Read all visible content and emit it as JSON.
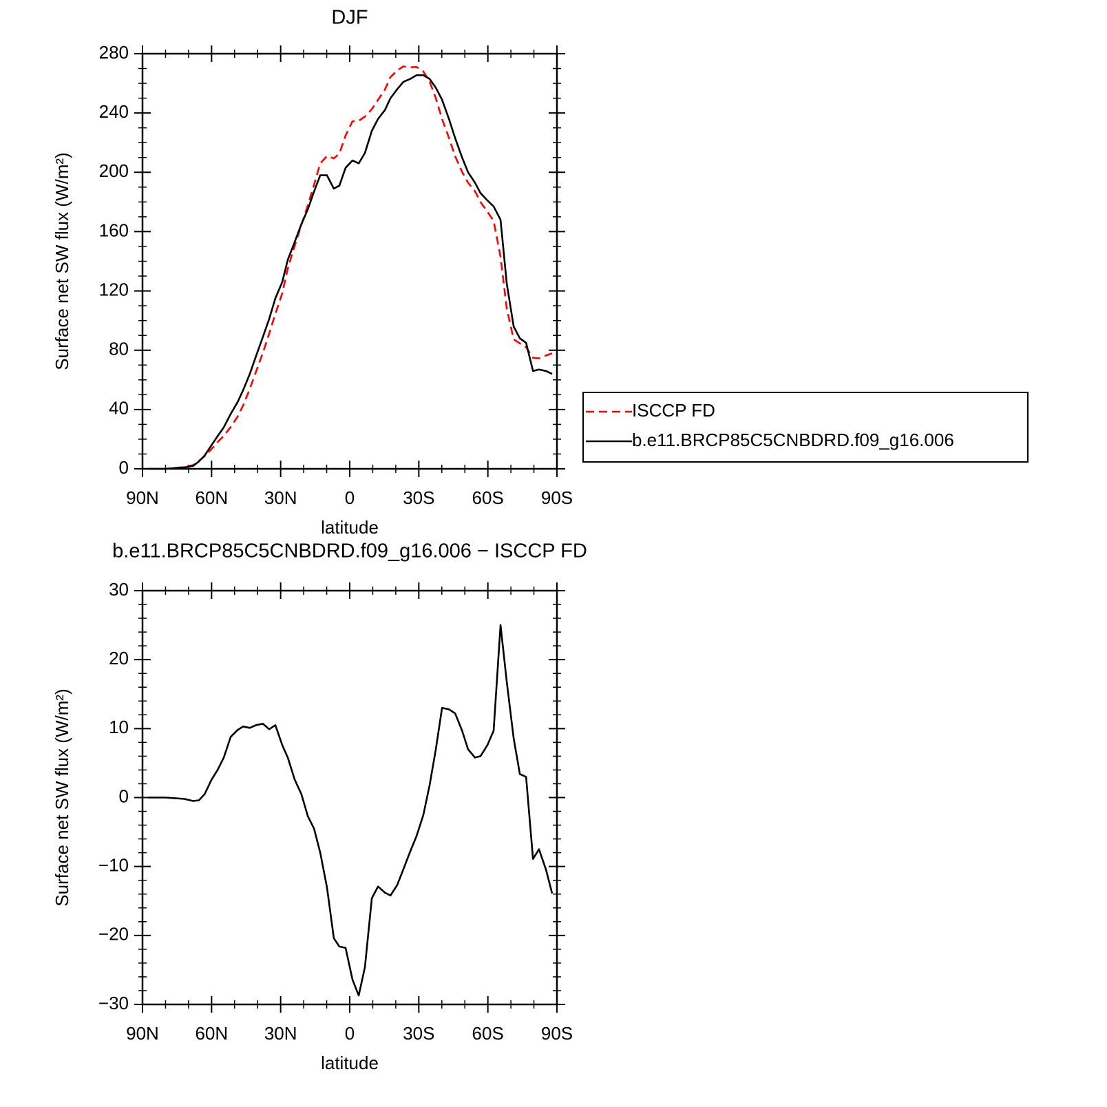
{
  "chart_data": [
    {
      "type": "line",
      "title": "DJF",
      "x_label": "latitude",
      "y_label": "Surface net SW flux (W/m²)",
      "x": [
        87.6,
        80,
        71.8,
        68,
        65.5,
        63,
        60,
        57.4,
        54.7,
        51.7,
        48.7,
        46.3,
        43.4,
        40.7,
        37.7,
        35,
        32.3,
        29.3,
        26.9,
        23.9,
        21,
        18.2,
        15.5,
        12.8,
        9.9,
        6.9,
        4.5,
        1.8,
        -1.2,
        -3.9,
        -6.6,
        -9.6,
        -12.3,
        -15.3,
        -17.7,
        -20.6,
        -23.3,
        -26.3,
        -29,
        -32,
        -34.7,
        -37.4,
        -40.1,
        -43.1,
        -45.8,
        -48.8,
        -51.4,
        -54.4,
        -56.8,
        -59.8,
        -62.5,
        -65.5,
        -68.2,
        -71.2,
        -73.9,
        -76.6,
        -79.6,
        -82.2,
        -85.2,
        -87.9
      ],
      "xlim": [
        90,
        -90
      ],
      "xticks": [
        {
          "value": 90,
          "label": "90N"
        },
        {
          "value": 60,
          "label": "60N"
        },
        {
          "value": 30,
          "label": "30N"
        },
        0,
        {
          "value": -30,
          "label": "30S"
        },
        {
          "value": -60,
          "label": "60S"
        },
        {
          "value": -90,
          "label": "90S"
        }
      ],
      "ylim": [
        0,
        280
      ],
      "yticks": [
        0,
        40,
        80,
        120,
        160,
        200,
        240,
        280
      ],
      "legend": "right",
      "series": [
        {
          "name": "ISCCP FD",
          "color": "#ff0000",
          "dash": "dashed",
          "values": [
            0,
            0,
            1.2,
            2.5,
            5.4,
            8.5,
            13.4,
            18,
            22.2,
            28.2,
            35.2,
            42.7,
            53.9,
            65.5,
            78.3,
            91.1,
            104.5,
            118.4,
            135.2,
            150.4,
            164.5,
            177.7,
            191.5,
            206,
            211,
            209.4,
            212.6,
            224.8,
            234.4,
            234.7,
            237.6,
            242.6,
            248.9,
            255.8,
            264.2,
            268.7,
            271.4,
            270.8,
            271.1,
            268,
            261.2,
            250,
            236,
            223.2,
            210.8,
            200.3,
            193,
            187.2,
            180,
            173.4,
            167.3,
            143,
            108.2,
            87.4,
            84.6,
            82,
            74.9,
            74.5,
            76.4,
            77.9
          ]
        },
        {
          "name": "b.e11.BRCP85C5CNBDRD.f09_g16.006",
          "color": "#000000",
          "dash": "solid",
          "values": [
            0,
            0,
            1,
            2,
            5,
            9,
            16,
            22,
            28,
            37,
            45,
            53,
            64,
            76,
            89,
            101,
            115,
            126,
            141,
            153,
            165,
            175,
            187,
            198,
            198,
            189,
            191,
            203,
            208,
            206,
            213,
            228,
            236,
            242,
            250,
            256,
            261,
            263,
            265.5,
            265.5,
            263,
            257,
            249,
            236,
            223,
            210,
            200,
            193,
            186,
            181,
            177,
            168,
            125,
            96,
            88,
            85,
            66,
            67,
            66,
            64
          ]
        }
      ]
    },
    {
      "type": "line",
      "title": "b.e11.BRCP85C5CNBDRD.f09_g16.006 − ISCCP FD",
      "x_label": "latitude",
      "y_label": "Surface net SW flux (W/m²)",
      "x": [
        87.6,
        80,
        71.8,
        68,
        65.5,
        63,
        60,
        57.4,
        54.7,
        51.7,
        48.7,
        46.3,
        43.4,
        40.7,
        37.7,
        35,
        32.3,
        29.3,
        26.9,
        23.9,
        21,
        18.2,
        15.5,
        12.8,
        9.9,
        6.9,
        4.5,
        1.8,
        -1.2,
        -3.9,
        -6.6,
        -9.6,
        -12.3,
        -15.3,
        -17.7,
        -20.6,
        -23.3,
        -26.3,
        -29,
        -32,
        -34.7,
        -37.4,
        -40.1,
        -43.1,
        -45.8,
        -48.8,
        -51.4,
        -54.4,
        -56.8,
        -59.8,
        -62.5,
        -65.5,
        -68.2,
        -71.2,
        -73.9,
        -76.6,
        -79.6,
        -82.2,
        -85.2,
        -87.9
      ],
      "xlim": [
        90,
        -90
      ],
      "xticks": [
        {
          "value": 90,
          "label": "90N"
        },
        {
          "value": 60,
          "label": "60N"
        },
        {
          "value": 30,
          "label": "30N"
        },
        0,
        {
          "value": -30,
          "label": "30S"
        },
        {
          "value": -60,
          "label": "60S"
        },
        {
          "value": -90,
          "label": "90S"
        }
      ],
      "ylim": [
        -30,
        30
      ],
      "yticks": [
        {
          "value": -30,
          "label": "−30"
        },
        {
          "value": -20,
          "label": "−20"
        },
        {
          "value": -10,
          "label": "−10"
        },
        0,
        10,
        20,
        30
      ],
      "series": [
        {
          "color": "#000000",
          "dash": "solid",
          "values": [
            0,
            0,
            -0.2,
            -0.5,
            -0.4,
            0.5,
            2.6,
            4,
            5.8,
            8.8,
            9.8,
            10.3,
            10.1,
            10.5,
            10.7,
            9.9,
            10.5,
            7.6,
            5.8,
            2.6,
            0.5,
            -2.7,
            -4.5,
            -8,
            -13,
            -20.4,
            -21.6,
            -21.8,
            -26.4,
            -28.7,
            -24.6,
            -14.6,
            -12.9,
            -13.8,
            -14.2,
            -12.7,
            -10.4,
            -7.8,
            -5.6,
            -2.5,
            1.8,
            7,
            13,
            12.8,
            12.2,
            9.7,
            7,
            5.8,
            6,
            7.6,
            9.7,
            25,
            16.8,
            8.6,
            3.4,
            3,
            -8.9,
            -7.5,
            -10.4,
            -13.9
          ]
        }
      ]
    }
  ]
}
